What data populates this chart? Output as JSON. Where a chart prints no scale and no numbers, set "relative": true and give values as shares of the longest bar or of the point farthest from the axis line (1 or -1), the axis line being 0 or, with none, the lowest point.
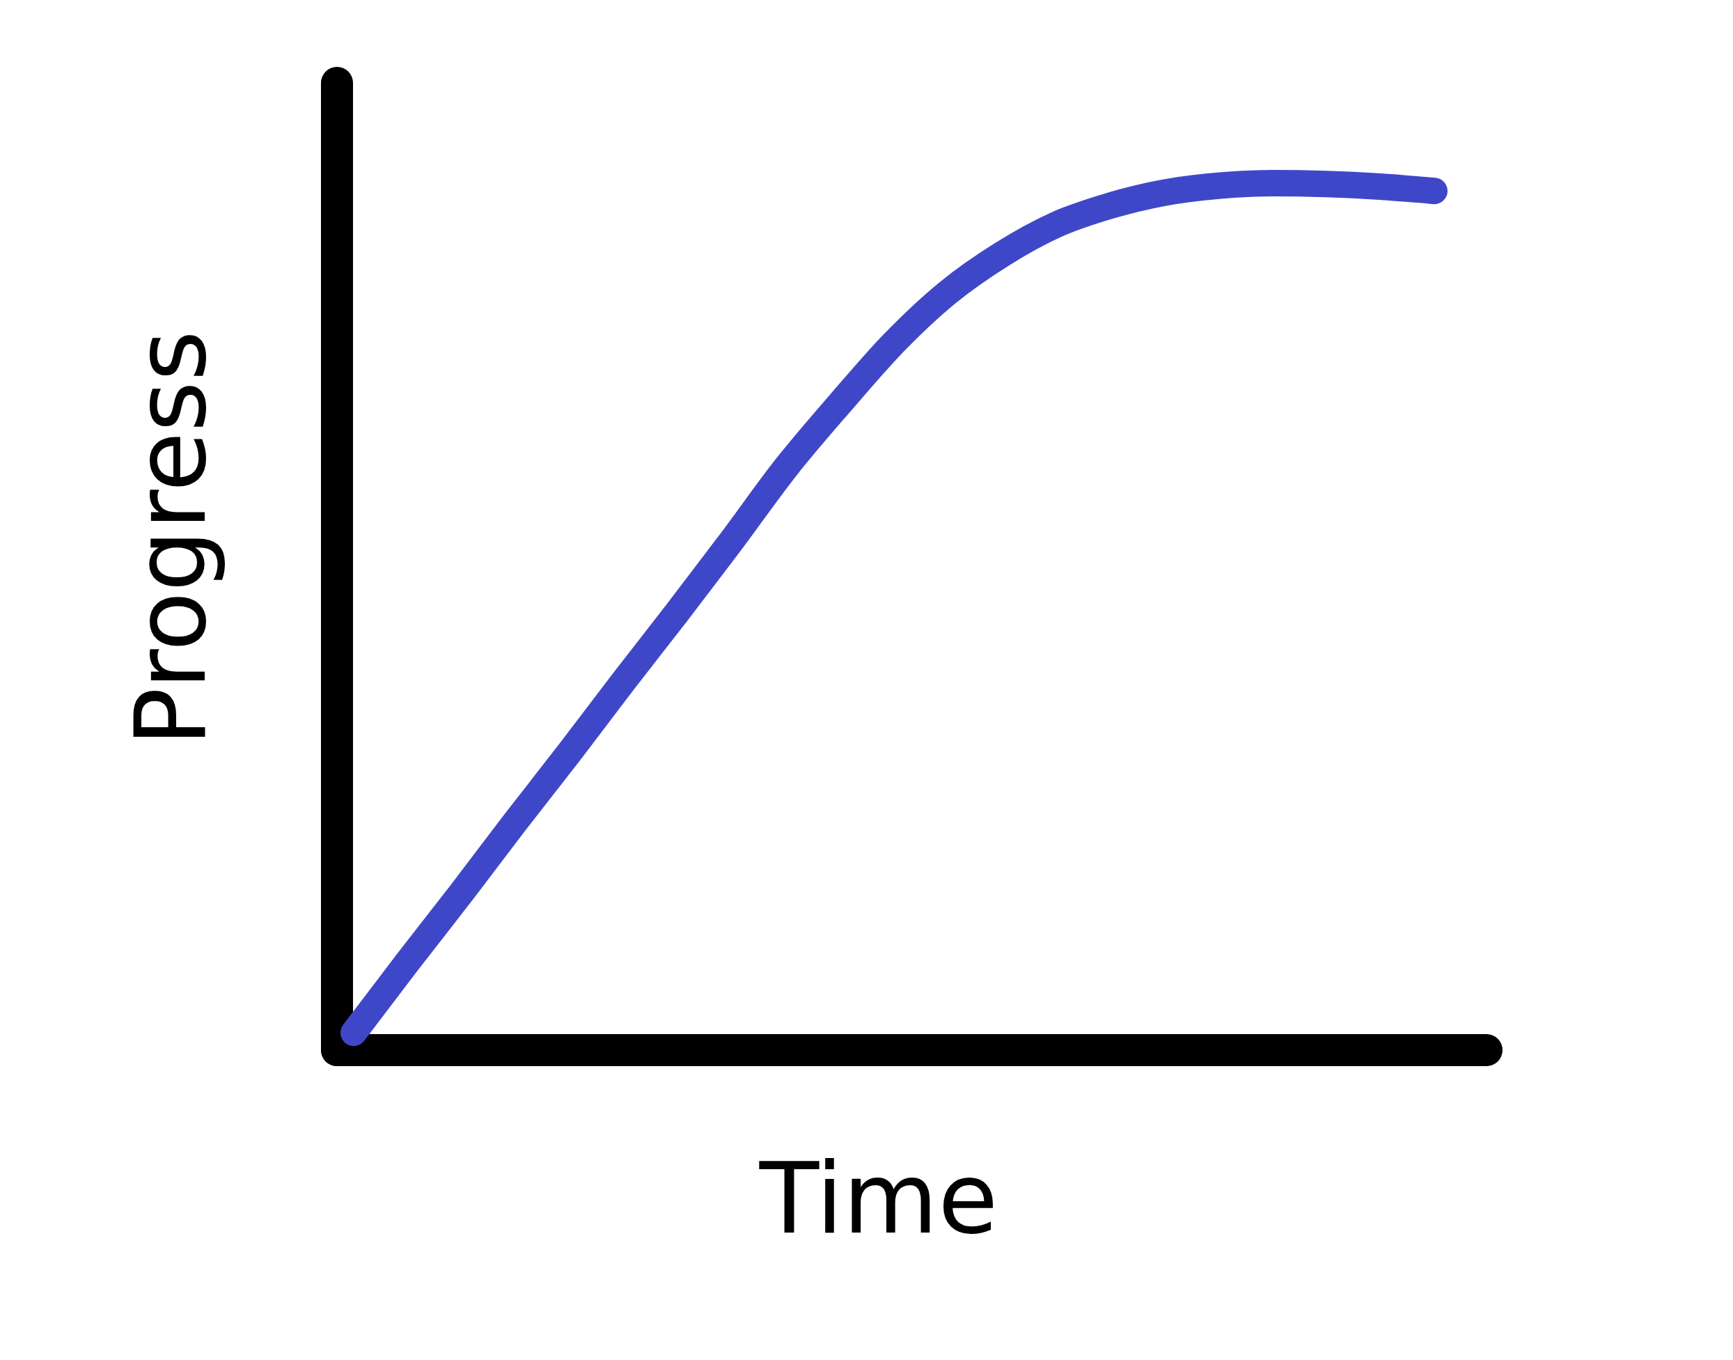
{
  "chart_data": {
    "type": "line",
    "xlabel": "Time",
    "ylabel": "Progress",
    "relative": true,
    "categories": [
      null,
      null,
      null,
      null,
      null,
      null,
      null,
      null,
      null,
      null,
      null,
      null,
      null,
      null,
      null,
      null,
      null,
      null,
      null,
      null,
      null
    ],
    "series": [
      {
        "color": "#3f47c9",
        "values": [
          0.02,
          0.102,
          0.182,
          0.264,
          0.344,
          0.426,
          0.506,
          0.588,
          0.672,
          0.746,
          0.816,
          0.874,
          0.918,
          0.952,
          0.974,
          0.989,
          0.997,
          1.0,
          0.999,
          0.996,
          0.991
        ]
      }
    ]
  }
}
